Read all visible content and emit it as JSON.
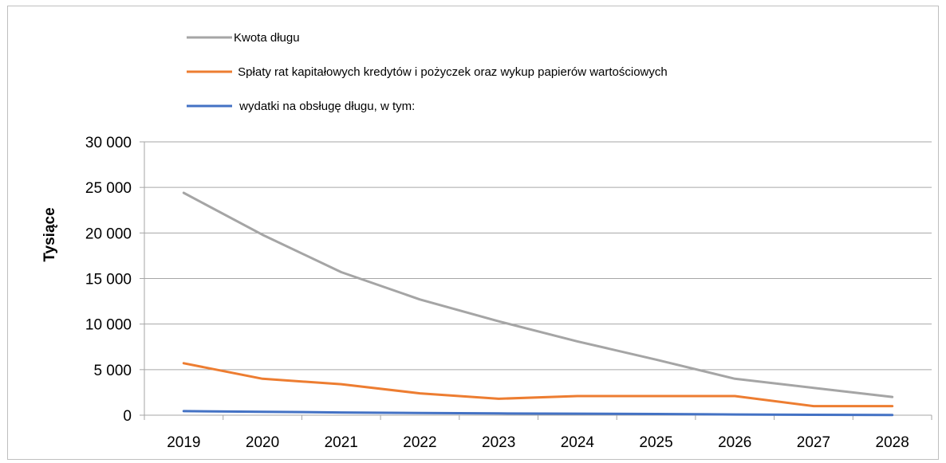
{
  "chart_data": {
    "type": "line",
    "title": "",
    "xlabel": "",
    "ylabel": "Tysiące",
    "ylim": [
      0,
      30000
    ],
    "y_ticks": [
      0,
      5000,
      10000,
      15000,
      20000,
      25000,
      30000
    ],
    "y_tick_labels": [
      "0",
      "5 000",
      "10 000",
      "15 000",
      "20 000",
      "25 000",
      "30 000"
    ],
    "categories": [
      "2019",
      "2020",
      "2021",
      "2022",
      "2023",
      "2024",
      "2025",
      "2026",
      "2027",
      "2028"
    ],
    "grid": true,
    "legend_position": "top",
    "series": [
      {
        "name": "Kwota długu",
        "color": "#a5a5a5",
        "values": [
          24400,
          19800,
          15700,
          12700,
          10300,
          8100,
          6100,
          4000,
          3000,
          2000
        ]
      },
      {
        "name": " Spłaty rat kapitałowych kredytów i pożyczek oraz wykup papierów wartościowych",
        "color": "#ed7d31",
        "values": [
          5700,
          4000,
          3400,
          2400,
          1800,
          2100,
          2100,
          2100,
          1000,
          1000
        ]
      },
      {
        "name": " wydatki na obsługę długu, w tym:",
        "color": "#4472c4",
        "values": [
          450,
          380,
          300,
          240,
          190,
          170,
          130,
          80,
          40,
          30
        ]
      }
    ]
  }
}
